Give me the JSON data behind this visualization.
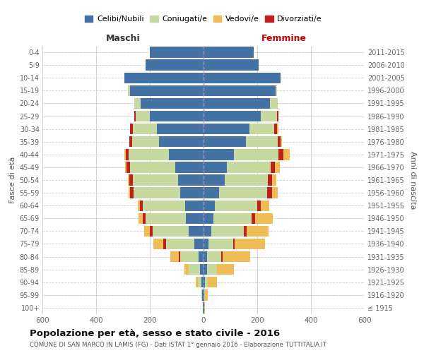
{
  "age_groups": [
    "100+",
    "95-99",
    "90-94",
    "85-89",
    "80-84",
    "75-79",
    "70-74",
    "65-69",
    "60-64",
    "55-59",
    "50-54",
    "45-49",
    "40-44",
    "35-39",
    "30-34",
    "25-29",
    "20-24",
    "15-19",
    "10-14",
    "5-9",
    "0-4"
  ],
  "birth_years": [
    "≤ 1915",
    "1916-1920",
    "1921-1925",
    "1926-1930",
    "1931-1935",
    "1936-1940",
    "1941-1945",
    "1946-1950",
    "1951-1955",
    "1956-1960",
    "1961-1965",
    "1966-1970",
    "1971-1975",
    "1976-1980",
    "1981-1985",
    "1986-1990",
    "1991-1995",
    "1996-2000",
    "2001-2005",
    "2006-2010",
    "2011-2015"
  ],
  "colors": {
    "celibe": "#4472a4",
    "coniugato": "#c5d9a0",
    "vedovo": "#f0bc55",
    "divorziato": "#c0201a"
  },
  "maschi": {
    "celibe": [
      2,
      4,
      8,
      14,
      18,
      35,
      55,
      65,
      68,
      88,
      95,
      105,
      130,
      165,
      175,
      200,
      235,
      275,
      295,
      215,
      200
    ],
    "coniugato": [
      0,
      3,
      12,
      40,
      70,
      105,
      135,
      150,
      158,
      172,
      168,
      168,
      148,
      102,
      88,
      52,
      22,
      6,
      0,
      0,
      0
    ],
    "vedovo": [
      0,
      2,
      8,
      18,
      32,
      38,
      22,
      16,
      6,
      5,
      5,
      5,
      5,
      0,
      0,
      0,
      0,
      0,
      0,
      0,
      0
    ],
    "divorziato": [
      0,
      0,
      0,
      0,
      5,
      10,
      10,
      12,
      12,
      13,
      13,
      15,
      12,
      10,
      10,
      5,
      0,
      0,
      0,
      0,
      0
    ]
  },
  "femmine": {
    "nubile": [
      2,
      3,
      6,
      12,
      12,
      18,
      28,
      38,
      42,
      58,
      78,
      88,
      112,
      158,
      172,
      212,
      248,
      268,
      288,
      205,
      188
    ],
    "coniugata": [
      0,
      2,
      10,
      38,
      55,
      92,
      122,
      142,
      158,
      178,
      162,
      162,
      168,
      118,
      92,
      62,
      28,
      6,
      0,
      0,
      0
    ],
    "vedova": [
      2,
      10,
      35,
      62,
      102,
      112,
      82,
      65,
      32,
      22,
      18,
      18,
      22,
      6,
      5,
      0,
      0,
      0,
      0,
      0,
      0
    ],
    "divorziata": [
      0,
      0,
      0,
      0,
      5,
      6,
      10,
      12,
      14,
      18,
      14,
      16,
      18,
      10,
      10,
      5,
      0,
      0,
      0,
      0,
      0
    ]
  },
  "title": "Popolazione per età, sesso e stato civile - 2016",
  "subtitle": "COMUNE DI SAN MARCO IN LAMIS (FG) - Dati ISTAT 1° gennaio 2016 - Elaborazione TUTTITALIA.IT",
  "xlabel_left": "Maschi",
  "xlabel_right": "Femmine",
  "ylabel_left": "Fasce di età",
  "ylabel_right": "Anni di nascita",
  "xlim": 600,
  "xticks": [
    -600,
    -400,
    -200,
    0,
    200,
    400,
    600
  ],
  "legend_labels": [
    "Celibi/Nubili",
    "Coniugati/e",
    "Vedovi/e",
    "Divorziati/e"
  ],
  "bg_color": "#ffffff",
  "grid_color": "#cccccc",
  "bar_height": 0.85
}
